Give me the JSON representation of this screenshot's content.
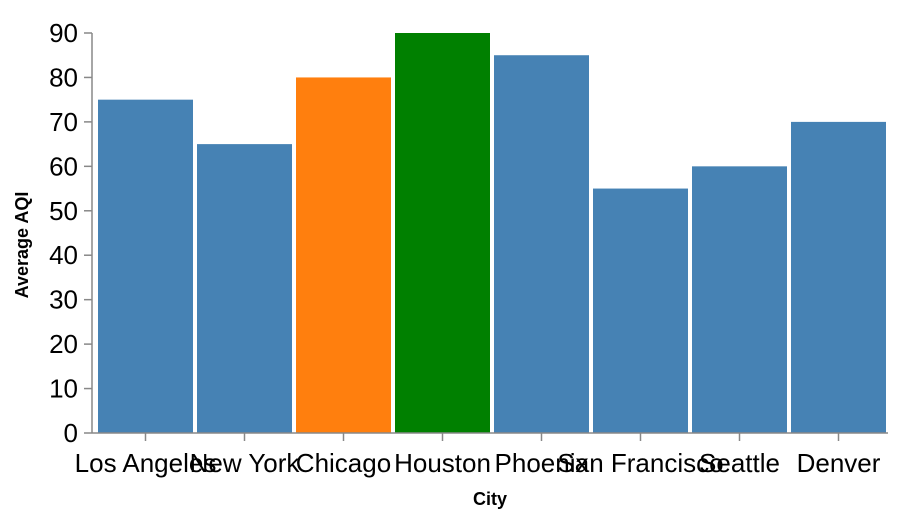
{
  "chart_data": {
    "type": "bar",
    "categories": [
      "Los Angeles",
      "New York",
      "Chicago",
      "Houston",
      "Phoenix",
      "San Francisco",
      "Seattle",
      "Denver"
    ],
    "values": [
      75,
      65,
      80,
      90,
      85,
      55,
      60,
      70
    ],
    "bar_colors": [
      "#4682b4",
      "#4682b4",
      "#ff7f0e",
      "#008000",
      "#4682b4",
      "#4682b4",
      "#4682b4",
      "#4682b4"
    ],
    "title": "",
    "xlabel": "City",
    "ylabel": "Average AQI",
    "ylim": [
      0,
      90
    ],
    "yticks": [
      0,
      10,
      20,
      30,
      40,
      50,
      60,
      70,
      80,
      90
    ],
    "grid": false,
    "legend": "none"
  }
}
